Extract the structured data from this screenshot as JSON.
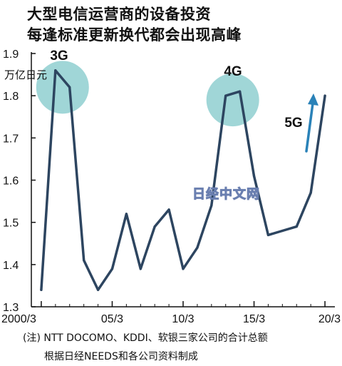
{
  "title_lines": [
    "大型电信运营商的设备投资",
    "每逢标准更新换代都会出现高峰"
  ],
  "unit": "万亿日元",
  "notes": [
    "(注) NTT DOCOMO、KDDI、软银三家公司的合计总额",
    "根据日经NEEDS和各公司资料制成"
  ],
  "watermark": "日经中文网",
  "colors": {
    "line": "#2d4560",
    "highlight": "#8fcfd0",
    "arrow": "#2a82b8",
    "axis": "#111111"
  },
  "chart_data": {
    "type": "line",
    "title": "大型电信运营商的设备投资 每逢标准更新换代都会出现高峰",
    "ylabel": "万亿日元",
    "xlabel": "",
    "ylim": [
      1.3,
      1.9
    ],
    "yticks": [
      "1.9",
      "1.8",
      "1.7",
      "1.6",
      "1.5",
      "1.4",
      "1.3"
    ],
    "ytick_values": [
      1.9,
      1.8,
      1.7,
      1.6,
      1.5,
      1.4,
      1.3
    ],
    "xticks": [
      "2000/3",
      "05/3",
      "10/3",
      "15/3",
      "20/3"
    ],
    "xtick_years": [
      2000,
      2005,
      2010,
      2015,
      2020
    ],
    "xlim": [
      1999.3,
      2020.7
    ],
    "grid": false,
    "x": [
      2000,
      2001,
      2002,
      2003,
      2004,
      2005,
      2006,
      2007,
      2008,
      2009,
      2010,
      2011,
      2012,
      2013,
      2014,
      2015,
      2016,
      2017,
      2018,
      2019,
      2020
    ],
    "values": [
      1.34,
      1.86,
      1.82,
      1.41,
      1.34,
      1.39,
      1.52,
      1.39,
      1.49,
      1.53,
      1.39,
      1.44,
      1.54,
      1.8,
      1.81,
      1.61,
      1.47,
      1.48,
      1.49,
      1.57,
      1.8
    ],
    "annotations": [
      {
        "text": "3G",
        "x": 2001.5,
        "y": 1.82
      },
      {
        "text": "4G",
        "x": 2013.5,
        "y": 1.79
      },
      {
        "text": "5G"
      }
    ]
  }
}
